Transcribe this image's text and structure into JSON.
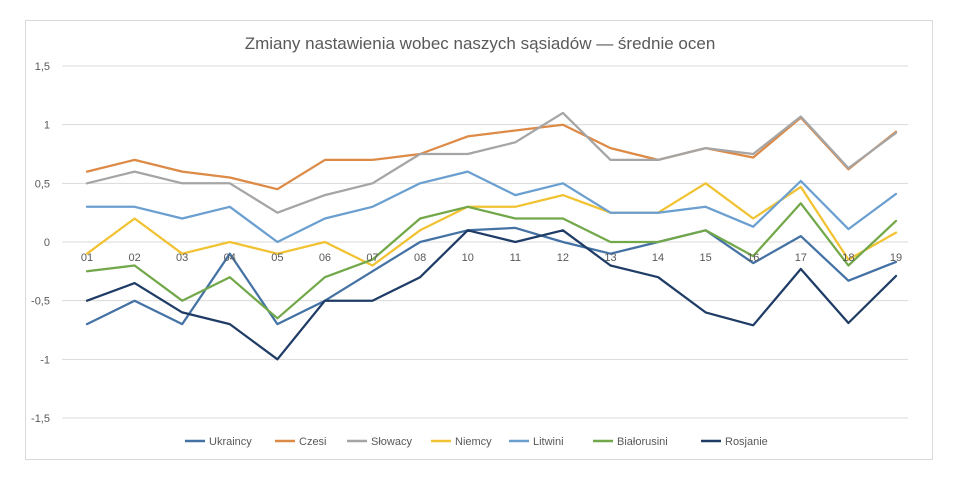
{
  "chart_data": {
    "type": "line",
    "title": "Zmiany nastawienia wobec naszych sąsiadów — średnie ocen",
    "xlabel": "",
    "ylabel": "",
    "categories": [
      "01",
      "02",
      "03",
      "04",
      "05",
      "06",
      "07",
      "08",
      "10",
      "11",
      "12",
      "13",
      "14",
      "15",
      "16",
      "17",
      "18",
      "19"
    ],
    "ylim": [
      -1.5,
      1.5
    ],
    "yticks": [
      1.5,
      1,
      0.5,
      0,
      -0.5,
      -1,
      -1.5
    ],
    "ytick_labels": [
      "1,5",
      "1",
      "0,5",
      "0",
      "-0,5",
      "-1",
      "-1,5"
    ],
    "grid": "horizontal",
    "legend_position": "bottom",
    "series": [
      {
        "name": "Ukraincy",
        "color": "#4472a4",
        "values": [
          -0.7,
          -0.5,
          -0.7,
          -0.1,
          -0.7,
          -0.5,
          -0.25,
          0,
          0.1,
          0.12,
          0,
          -0.1,
          0,
          0.1,
          -0.18,
          0.05,
          -0.33,
          -0.17
        ]
      },
      {
        "name": "Czesi",
        "color": "#dd8a47",
        "values": [
          0.6,
          0.7,
          0.6,
          0.55,
          0.45,
          0.7,
          0.7,
          0.75,
          0.9,
          0.95,
          1.0,
          0.8,
          0.7,
          0.8,
          0.72,
          1.06,
          0.62,
          0.94
        ]
      },
      {
        "name": "Słowacy",
        "color": "#a5a5a5",
        "values": [
          0.5,
          0.6,
          0.5,
          0.5,
          0.25,
          0.4,
          0.5,
          0.75,
          0.75,
          0.85,
          1.1,
          0.7,
          0.7,
          0.8,
          0.75,
          1.07,
          0.63,
          0.93
        ]
      },
      {
        "name": "Niemcy",
        "color": "#f1c232",
        "values": [
          -0.1,
          0.2,
          -0.1,
          0,
          -0.1,
          0,
          -0.2,
          0.1,
          0.3,
          0.3,
          0.4,
          0.25,
          0.25,
          0.5,
          0.2,
          0.47,
          -0.15,
          0.08
        ]
      },
      {
        "name": "Litwini",
        "color": "#6a9fd0",
        "values": [
          0.3,
          0.3,
          0.2,
          0.3,
          0,
          0.2,
          0.3,
          0.5,
          0.6,
          0.4,
          0.5,
          0.25,
          0.25,
          0.3,
          0.13,
          0.52,
          0.11,
          0.41
        ]
      },
      {
        "name": "Białorusini",
        "color": "#72a84a",
        "values": [
          -0.25,
          -0.2,
          -0.5,
          -0.3,
          -0.65,
          -0.3,
          -0.15,
          0.2,
          0.3,
          0.2,
          0.2,
          0,
          0,
          0.1,
          -0.12,
          0.33,
          -0.2,
          0.18
        ]
      },
      {
        "name": "Rosjanie",
        "color": "#1f3c66",
        "values": [
          -0.5,
          -0.35,
          -0.6,
          -0.7,
          -1.0,
          -0.5,
          -0.5,
          -0.3,
          0.1,
          0,
          0.1,
          -0.2,
          -0.3,
          -0.6,
          -0.71,
          -0.23,
          -0.69,
          -0.29
        ]
      }
    ]
  }
}
